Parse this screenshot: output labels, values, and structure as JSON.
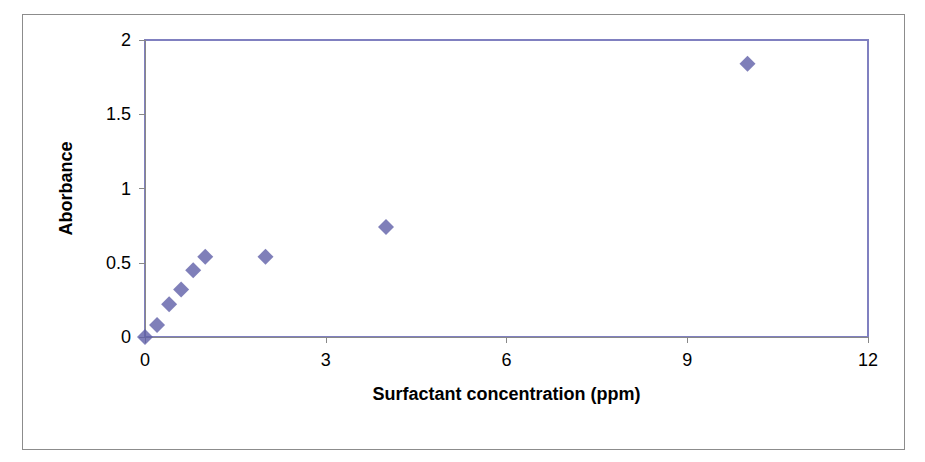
{
  "chart_data": {
    "type": "scatter",
    "x_label": "Surfactant concentration (ppm)",
    "y_label": "Aborbance",
    "x": [
      0,
      0.2,
      0.4,
      0.6,
      0.8,
      1,
      2,
      4,
      10
    ],
    "values": [
      0,
      0.08,
      0.22,
      0.32,
      0.45,
      0.54,
      0.54,
      0.74,
      1.84
    ],
    "color": "#5f5fa8",
    "marker": "diamond",
    "xlim": [
      0,
      12
    ],
    "xticks": [
      0,
      3,
      6,
      9,
      12
    ],
    "ylim": [
      0,
      2
    ],
    "yticks": [
      0,
      0.5,
      1,
      1.5,
      2
    ],
    "grid": false
  }
}
